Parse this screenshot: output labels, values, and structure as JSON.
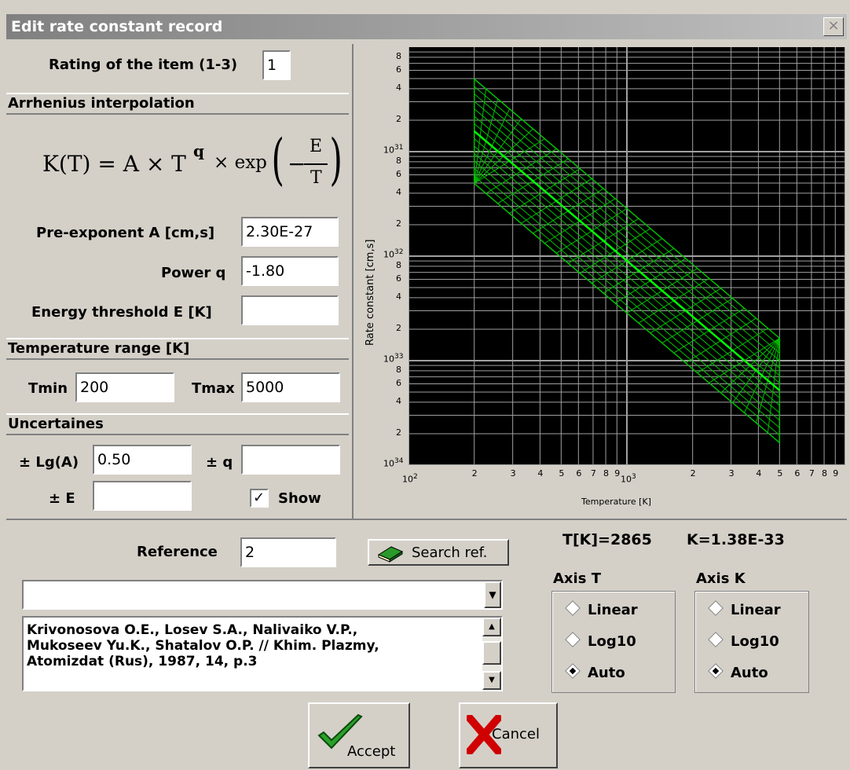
{
  "window": {
    "title": "Edit rate constant record",
    "close": "×"
  },
  "rating": {
    "label": "Rating of the item (1-3)",
    "value": "1"
  },
  "arrhenius": {
    "header": "Arrhenius interpolation",
    "formula": {
      "lhs": "K(T) = A × T",
      "power": "q",
      "mid": "× exp",
      "num": "E",
      "den": "T",
      "minus": "−"
    },
    "pre_exp": {
      "label": "Pre-exponent A [cm,s]",
      "value": "2.30E-27"
    },
    "power": {
      "label": "Power q",
      "value": "-1.80"
    },
    "energy": {
      "label": "Energy threshold E [K]",
      "value": ""
    }
  },
  "temp": {
    "header": "Temperature range [K]",
    "tmin_label": "Tmin",
    "tmin": "200",
    "tmax_label": "Tmax",
    "tmax": "5000"
  },
  "unc": {
    "header": "Uncertaines",
    "lga_label": "± Lg(A)",
    "lga": "0.50",
    "q_label": "± q",
    "q": "",
    "e_label": "± E",
    "e": "",
    "show_label": "Show",
    "show_mark": "✓"
  },
  "chart_data": {
    "type": "line",
    "xlabel": "Temperature [K]",
    "ylabel": "Rate constant [cm,s]",
    "x_scale": "log",
    "y_scale": "log",
    "xlim": [
      100,
      10000
    ],
    "ylim": [
      1e-34,
      1e-30
    ],
    "x_tick_main": [
      "10",
      "10"
    ],
    "x_tick_exp": [
      "2",
      "3"
    ],
    "x_tick_minor": [
      "2",
      "3",
      "4",
      "5",
      "6",
      "7",
      "8",
      "9",
      "2",
      "3",
      "4",
      "5",
      "6",
      "7",
      "8",
      "9"
    ],
    "y_tick_main": [
      "10",
      "10",
      "10",
      "10"
    ],
    "y_tick_exp": [
      "31",
      "32",
      "33",
      "34"
    ],
    "y_tick_minor": [
      "8",
      "6",
      "4",
      "2"
    ],
    "series": [
      {
        "x": [
          200,
          5000
        ],
        "y": [
          1.57e-31,
          5.2e-34
        ]
      }
    ],
    "band": {
      "upper": [
        4.96e-31,
        1.64e-33
      ],
      "lower": [
        4.96e-32,
        1.64e-34
      ]
    },
    "colors": {
      "line": "#00ff00",
      "band": "#00c000",
      "grid": "#a0a0a0",
      "bg": "#000000"
    }
  },
  "cursor": {
    "t": "T[K]=2865",
    "k": "K=1.38E-33"
  },
  "reference": {
    "label": "Reference",
    "value": "2",
    "search": "Search ref."
  },
  "dropdown": {
    "value": "",
    "arrow": "▼"
  },
  "citation": {
    "lines": [
      "Krivonosova O.E., Losev S.A., Nalivaiko V.P.,",
      "Mukoseev Yu.K., Shatalov O.P. // Khim. Plazmy,",
      "Atomizdat (Rus), 1987, 14, p.3"
    ],
    "up": "▲",
    "down": "▼"
  },
  "axis_t": {
    "title": "Axis T",
    "options": [
      "Linear",
      "Log10",
      "Auto"
    ],
    "selected": "Auto"
  },
  "axis_k": {
    "title": "Axis K",
    "options": [
      "Linear",
      "Log10",
      "Auto"
    ],
    "selected": "Auto"
  },
  "buttons": {
    "accept": "Accept",
    "cancel": "Cancel"
  }
}
